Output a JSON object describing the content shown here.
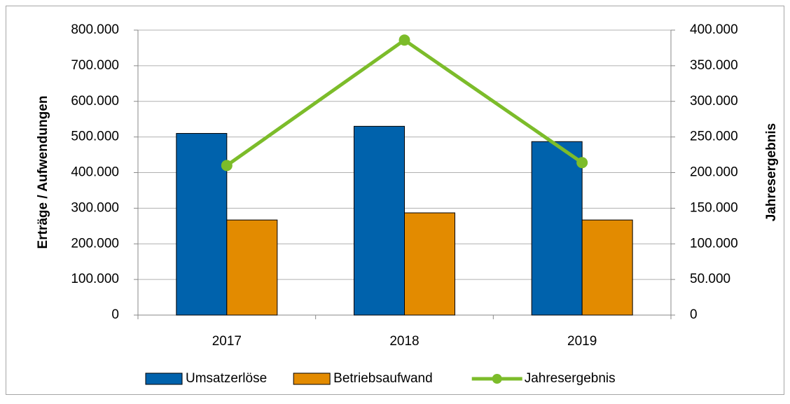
{
  "chart_data": {
    "type": "bar_line",
    "categories": [
      "2017",
      "2018",
      "2019"
    ],
    "series": [
      {
        "name": "Umsatzerlöse",
        "color": "#0062ac",
        "type": "bar",
        "values": [
          510000,
          530000,
          487000
        ]
      },
      {
        "name": "Betriebsaufwand",
        "color": "#e38b00",
        "type": "bar",
        "values": [
          267000,
          287000,
          267000
        ]
      },
      {
        "name": "Jahresergebnis",
        "color": "#7cbc2a",
        "type": "line",
        "axis": "y2",
        "values": [
          210000,
          386000,
          214000
        ]
      }
    ],
    "ylabel": "Erträge / Aufwendungen",
    "y2label": "Jahresergebnis",
    "ylim": [
      0,
      800000
    ],
    "yticks": [
      0,
      {
        "value": 100000,
        "label": "100.000"
      },
      {
        "value": 200000,
        "label": "200.000"
      },
      {
        "value": 300000,
        "label": "300.000"
      },
      {
        "value": 400000,
        "label": "400.000"
      },
      {
        "value": 500000,
        "label": "500.000"
      },
      {
        "value": 600000,
        "label": "600.000"
      },
      {
        "value": 700000,
        "label": "700.000"
      },
      {
        "value": 800000,
        "label": "800.000"
      }
    ],
    "y2lim": [
      0,
      400000
    ],
    "y2ticks": [
      0,
      {
        "value": 50000,
        "label": "50.000"
      },
      {
        "value": 100000,
        "label": "100.000"
      },
      {
        "value": 150000,
        "label": "150.000"
      },
      {
        "value": 200000,
        "label": "200.000"
      },
      {
        "value": 250000,
        "label": "250.000"
      },
      {
        "value": 300000,
        "label": "300.000"
      },
      {
        "value": 350000,
        "label": "350.000"
      },
      {
        "value": 400000,
        "label": "400.000"
      }
    ],
    "grid": true,
    "legend": "bottom"
  }
}
